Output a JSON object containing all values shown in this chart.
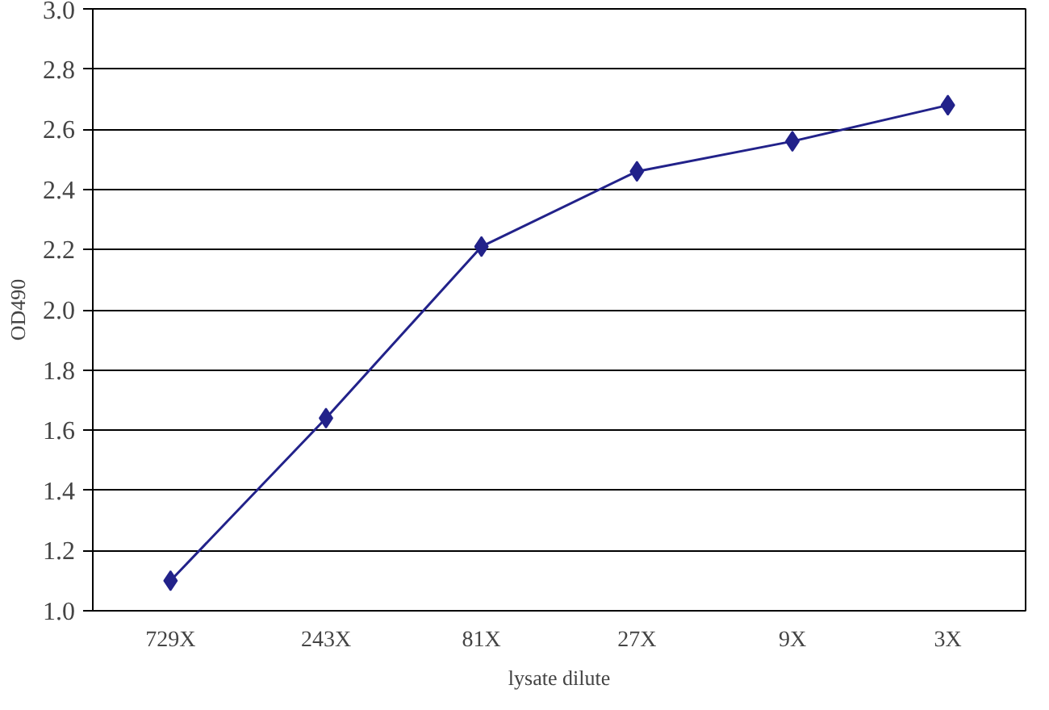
{
  "chart_data": {
    "type": "line",
    "xlabel": "lysate dilute",
    "ylabel": "OD490",
    "categories": [
      "729X",
      "243X",
      "81X",
      "27X",
      "9X",
      "3X"
    ],
    "series": [
      {
        "color": "#22228a",
        "values": [
          1.1,
          1.64,
          2.21,
          2.46,
          2.56,
          2.68
        ]
      }
    ],
    "ylim": [
      1.0,
      3.0
    ],
    "yticks": [
      {
        "value": 1,
        "label": "1.0"
      },
      1.2,
      1.4,
      1.6,
      1.8,
      {
        "value": 2,
        "label": "2.0"
      },
      2.2,
      2.4,
      2.6,
      2.8,
      {
        "value": 3,
        "label": "3.0"
      }
    ],
    "grid": "y",
    "marker": "diamond",
    "line_style": "solid"
  }
}
